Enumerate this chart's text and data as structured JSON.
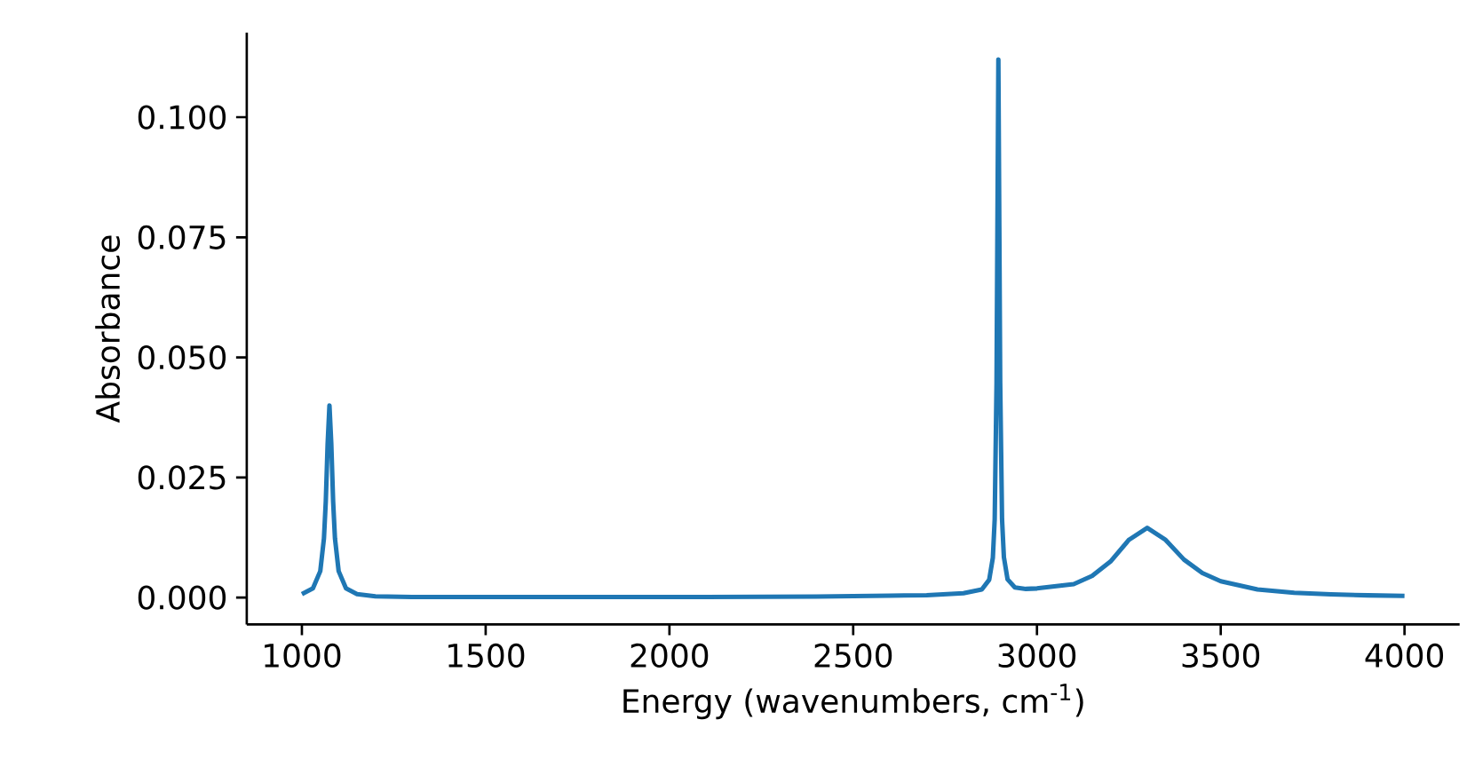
{
  "chart_data": {
    "type": "line",
    "xlabel": "Energy (wavenumbers, cm$^{-1}$)",
    "ylabel": "Absorbance",
    "x": [
      1000,
      1030,
      1050,
      1060,
      1065,
      1070,
      1075,
      1080,
      1085,
      1090,
      1100,
      1120,
      1150,
      1200,
      1300,
      1500,
      1800,
      2100,
      2400,
      2600,
      2700,
      2800,
      2850,
      2870,
      2880,
      2885,
      2890,
      2895,
      2900,
      2905,
      2910,
      2920,
      2940,
      2970,
      3000,
      3100,
      3150,
      3200,
      3250,
      3300,
      3350,
      3400,
      3450,
      3500,
      3600,
      3700,
      3800,
      3900,
      4000
    ],
    "series": [
      {
        "color": "#1f77b4",
        "values": [
          0.0007,
          0.0019,
          0.0055,
          0.0123,
          0.02,
          0.032,
          0.04,
          0.032,
          0.02,
          0.0123,
          0.0055,
          0.0019,
          0.0007,
          0.00025,
          0.0001,
          0.0001,
          0.0001,
          0.0001,
          0.0002,
          0.0004,
          0.0005,
          0.0009,
          0.0017,
          0.0037,
          0.0083,
          0.0163,
          0.0446,
          0.112,
          0.0446,
          0.0163,
          0.0084,
          0.0038,
          0.0021,
          0.0018,
          0.0019,
          0.0028,
          0.0045,
          0.0075,
          0.012,
          0.0145,
          0.012,
          0.0079,
          0.0051,
          0.0034,
          0.0017,
          0.001,
          0.00067,
          0.00047,
          0.00035
        ]
      }
    ],
    "xlim": [
      850,
      4150
    ],
    "ylim": [
      -0.0056,
      0.1176
    ],
    "xticks": [
      1000,
      1500,
      2000,
      2500,
      3000,
      3500,
      4000
    ],
    "yticks": [
      {
        "value": 0,
        "label": "0.000"
      },
      {
        "value": 0.025,
        "label": "0.025"
      },
      {
        "value": 0.05,
        "label": "0.050"
      },
      {
        "value": 0.075,
        "label": "0.075"
      },
      {
        "value": 0.1,
        "label": "0.100"
      }
    ]
  }
}
